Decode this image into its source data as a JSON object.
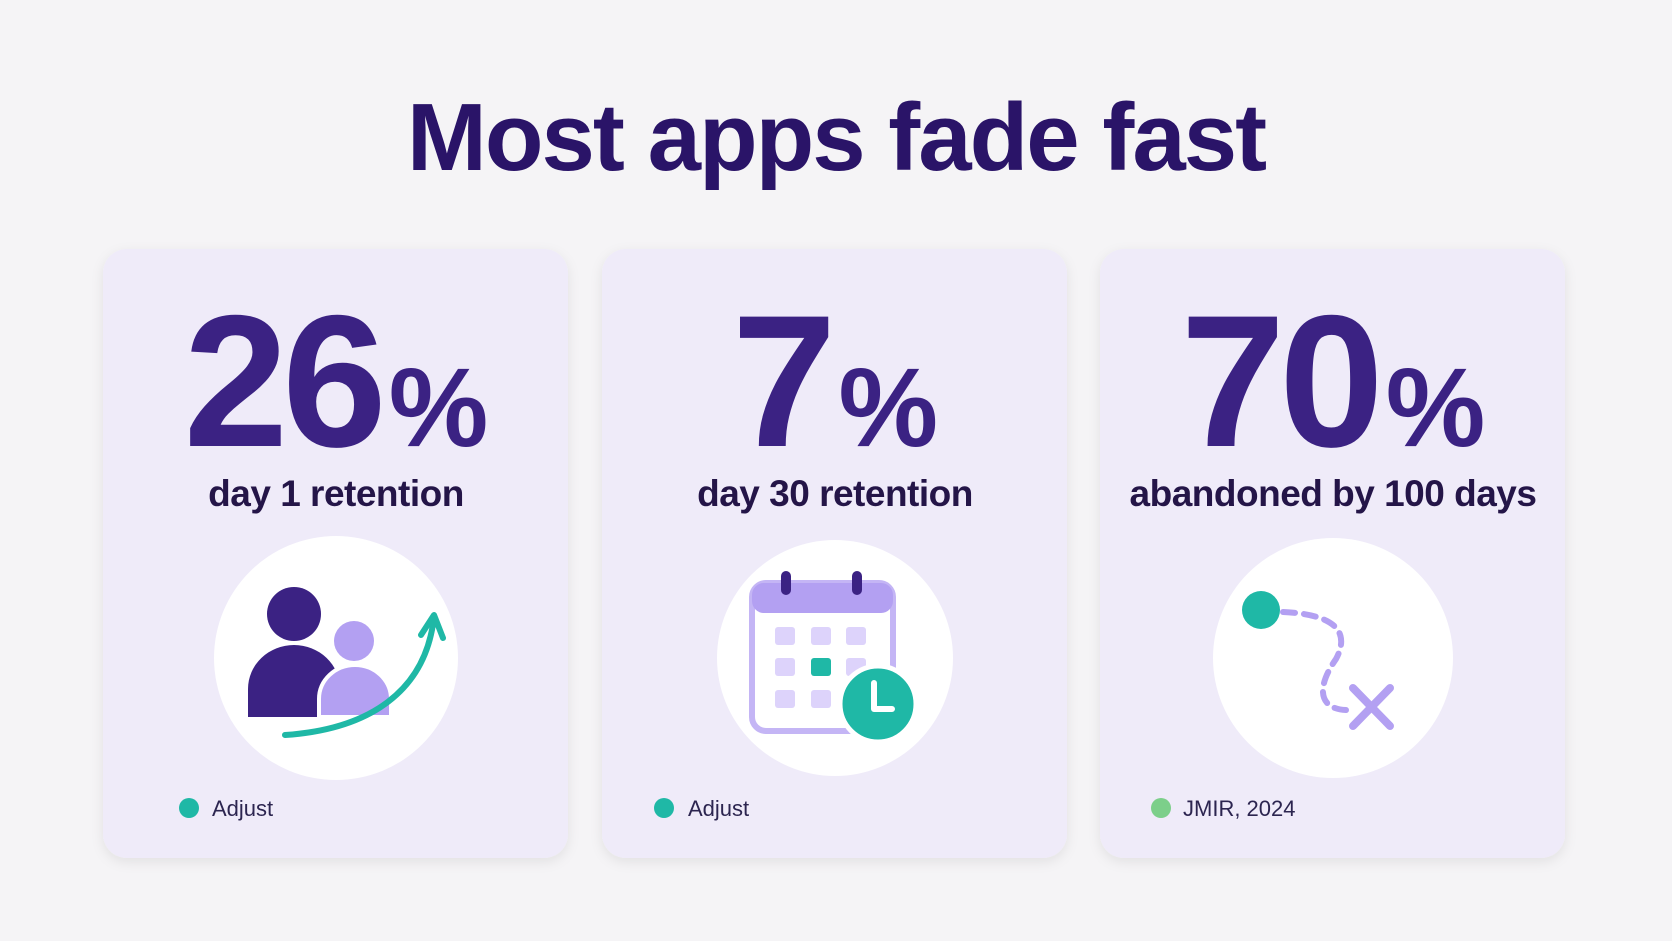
{
  "title": "Most apps fade fast",
  "cards": [
    {
      "number": "26",
      "unit": "%",
      "label": "day 1 retention",
      "source": "Adjust"
    },
    {
      "number": "7",
      "unit": "%",
      "label": "day 30 retention",
      "source": "Adjust"
    },
    {
      "number": "70",
      "unit": "%",
      "label": "abandoned by 100 days",
      "source": "JMIR, 2024"
    }
  ]
}
